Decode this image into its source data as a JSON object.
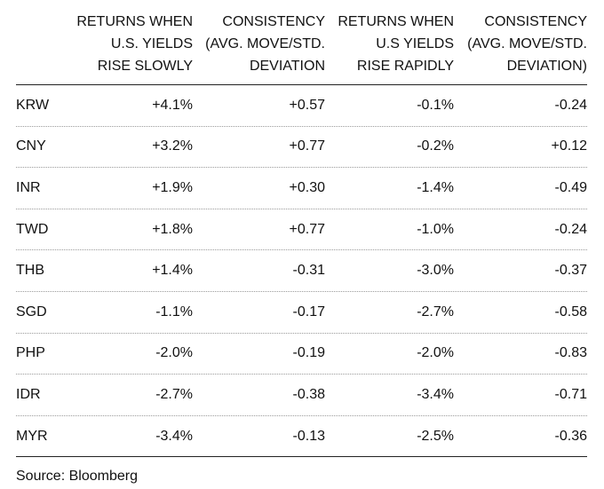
{
  "table": {
    "headers": [
      [
        ""
      ],
      [
        "RETURNS WHEN",
        "U.S. YIELDS",
        "RISE SLOWLY"
      ],
      [
        "CONSISTENCY",
        "(AVG. MOVE/STD.",
        "DEVIATION"
      ],
      [
        "RETURNS WHEN",
        "U.S YIELDS",
        "RISE RAPIDLY"
      ],
      [
        "CONSISTENCY",
        "(AVG. MOVE/STD.",
        "DEVIATION)"
      ]
    ],
    "rows": [
      [
        "KRW",
        "+4.1%",
        "+0.57",
        "-0.1%",
        "-0.24"
      ],
      [
        "CNY",
        "+3.2%",
        "+0.77",
        "-0.2%",
        "+0.12"
      ],
      [
        "INR",
        "+1.9%",
        "+0.30",
        "-1.4%",
        "-0.49"
      ],
      [
        "TWD",
        "+1.8%",
        "+0.77",
        "-1.0%",
        "-0.24"
      ],
      [
        "THB",
        "+1.4%",
        "-0.31",
        "-3.0%",
        "-0.37"
      ],
      [
        "SGD",
        "-1.1%",
        "-0.17",
        "-2.7%",
        "-0.58"
      ],
      [
        "PHP",
        "-2.0%",
        "-0.19",
        "-2.0%",
        "-0.83"
      ],
      [
        "IDR",
        "-2.7%",
        "-0.38",
        "-3.4%",
        "-0.71"
      ],
      [
        "MYR",
        "-3.4%",
        "-0.13",
        "-2.5%",
        "-0.36"
      ]
    ]
  },
  "source": "Source: Bloomberg"
}
